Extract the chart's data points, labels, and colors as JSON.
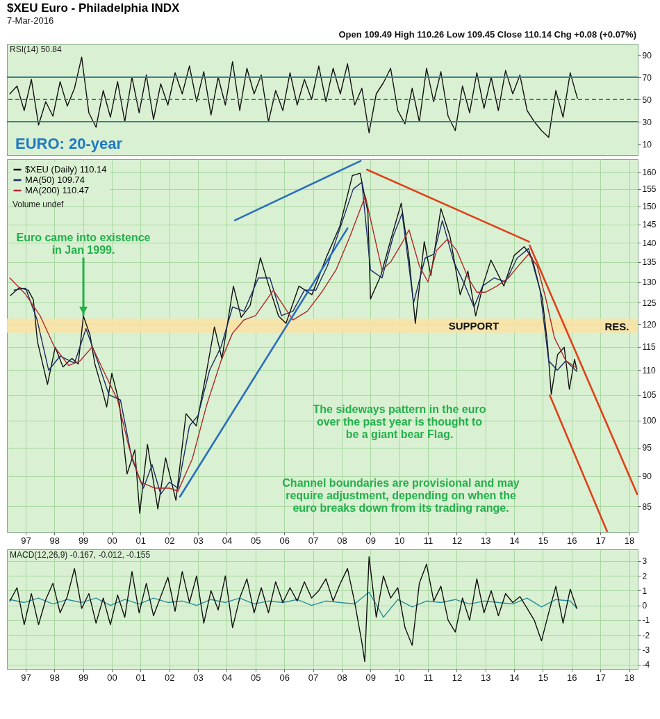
{
  "chart_data": [
    {
      "type": "line",
      "title": "$XEU Euro - Philadelphia INDX",
      "subtitle": "7-Mar-2016",
      "annotations": [
        "Open 109.49 High 110.26 Low 109.45 Close 110.14 Chg +0.08 (+0.07%)",
        "RSI(14) 50.84",
        "EURO: 20-year"
      ],
      "categories": [
        null,
        null,
        null,
        null,
        null,
        null,
        null,
        null,
        null,
        null,
        null,
        null,
        null,
        null,
        null,
        null,
        null,
        null,
        null,
        null,
        null,
        null,
        null,
        null,
        null,
        null,
        null,
        null,
        null,
        null,
        null,
        null,
        null,
        null,
        null,
        null,
        null,
        null,
        null,
        null,
        null,
        null,
        null,
        null,
        null,
        null,
        null,
        null,
        null,
        null,
        null,
        null,
        null,
        null,
        null,
        null,
        null,
        null,
        null,
        null,
        null,
        null,
        null,
        null,
        null,
        null,
        null,
        null,
        null,
        null,
        null,
        null,
        null,
        null,
        null,
        null,
        null,
        null,
        null,
        null,
        null,
        null,
        null,
        null,
        null,
        null,
        null,
        null
      ],
      "ylim": [
        0,
        100
      ],
      "yticks": [
        10,
        30,
        50,
        70,
        90
      ],
      "tick_labels": "y",
      "ref_lines": [
        {
          "axis": "y",
          "value": 70,
          "color": "#3d7f8c"
        },
        {
          "axis": "y",
          "value": 30,
          "color": "#3d7f8c"
        },
        {
          "axis": "y",
          "value": 50,
          "color": "#3d7f8c",
          "line_style": "dashed"
        }
      ],
      "series": [
        {
          "color": "#111111",
          "values": [
            55,
            62,
            40,
            68,
            27,
            48,
            35,
            66,
            44,
            60,
            88,
            38,
            25,
            58,
            34,
            66,
            30,
            70,
            38,
            72,
            32,
            64,
            45,
            74,
            55,
            80,
            48,
            75,
            36,
            70,
            45,
            84,
            40,
            78,
            55,
            72,
            30,
            58,
            40,
            74,
            45,
            68,
            50,
            80,
            48,
            78,
            55,
            82,
            45,
            60,
            20,
            55,
            65,
            78,
            40,
            28,
            60,
            30,
            78,
            48,
            75,
            35,
            22,
            62,
            38,
            74,
            42,
            70,
            40,
            76,
            55,
            72,
            40,
            30,
            22,
            16,
            58,
            34,
            74,
            51,
            null,
            null,
            null,
            null,
            null,
            null,
            null,
            null
          ]
        }
      ]
    },
    {
      "type": "line",
      "log": "y",
      "legend": "top left",
      "annotations": [
        {
          "text": "Euro came into existence\nin Jan 1999.",
          "x": 1999.01,
          "y": 121.9
        },
        "Volume undef",
        "The sideways pattern in the euro\nover the past year is thought to\nbe a giant bear Flag.",
        "Channel boundaries are provisional and may\nrequire adjustment, depending on when the\neuro breaks down from its trading range.",
        "RES."
      ],
      "xlim": [
        1996.35,
        2018.3
      ],
      "xticks": [
        {
          "value": 1997,
          "label": "97"
        },
        {
          "value": 1998,
          "label": "98"
        },
        {
          "value": 1999,
          "label": "99"
        },
        {
          "value": 2000,
          "label": "00"
        },
        {
          "value": 2001,
          "label": "01"
        },
        {
          "value": 2002,
          "label": "02"
        },
        {
          "value": 2003,
          "label": "03"
        },
        {
          "value": 2004,
          "label": "04"
        },
        {
          "value": 2005,
          "label": "05"
        },
        {
          "value": 2006,
          "label": "06"
        },
        {
          "value": 2007,
          "label": "07"
        },
        {
          "value": 2008,
          "label": "08"
        },
        {
          "value": 2009,
          "label": "09"
        },
        {
          "value": 2010,
          "label": "10"
        },
        {
          "value": 2011,
          "label": "11"
        },
        {
          "value": 2012,
          "label": "12"
        },
        {
          "value": 2013,
          "label": "13"
        },
        {
          "value": 2014,
          "label": "14"
        },
        {
          "value": 2015,
          "label": "15"
        },
        {
          "value": 2016,
          "label": "16"
        },
        {
          "value": 2017,
          "label": "17"
        },
        {
          "value": 2018,
          "label": "18"
        }
      ],
      "ylim": [
        81,
        164
      ],
      "yticks": [
        85,
        90,
        95,
        100,
        105,
        110,
        115,
        120,
        125,
        130,
        135,
        140,
        145,
        150,
        155,
        160
      ],
      "grid": true,
      "bands": [
        {
          "axis": "y",
          "from": 118.1,
          "to": 121.3,
          "label": "SUPPORT",
          "color": "#f8e2a6"
        }
      ],
      "series": [
        {
          "name": "$XEU (Daily) 110.14",
          "color": "#111111",
          "x": [
            1996.47,
            1996.78,
            1997.09,
            1997.27,
            1997.41,
            1997.76,
            1998.03,
            1998.3,
            1998.61,
            1998.83,
            1999.01,
            1999.24,
            1999.41,
            1999.64,
            1999.82,
            2000.0,
            2000.26,
            2000.53,
            2000.8,
            2000.97,
            2001.24,
            2001.6,
            2001.87,
            2002.23,
            2002.58,
            2002.94,
            2003.3,
            2003.57,
            2003.83,
            2004.23,
            2004.5,
            2004.81,
            2005.17,
            2005.44,
            2005.8,
            2006.06,
            2006.51,
            2006.96,
            2007.49,
            2007.93,
            2008.37,
            2008.64,
            2008.91,
            2009.0,
            2009.36,
            2009.71,
            2010.07,
            2010.34,
            2010.56,
            2010.87,
            2011.1,
            2011.45,
            2011.77,
            2012.12,
            2012.39,
            2012.66,
            2012.93,
            2013.19,
            2013.64,
            2014.0,
            2014.35,
            2014.62,
            2014.98,
            2015.16,
            2015.29,
            2015.51,
            2015.74,
            2015.92,
            2016.1,
            2016.18
          ],
          "values": [
            126.7,
            128.6,
            128.0,
            125.7,
            116.2,
            107.1,
            114.9,
            110.7,
            112.5,
            111.3,
            121.9,
            117.6,
            111.3,
            106.6,
            102.6,
            109.4,
            103.4,
            90.4,
            94.6,
            83.9,
            95.6,
            84.6,
            93.2,
            86.0,
            101.3,
            99.0,
            109.9,
            119.4,
            112.4,
            129.0,
            121.6,
            124.3,
            136.1,
            129.6,
            121.9,
            120.2,
            129.0,
            126.9,
            136.7,
            144.4,
            159.0,
            159.7,
            148.3,
            125.9,
            131.6,
            141.0,
            150.9,
            136.1,
            120.2,
            140.3,
            131.6,
            149.4,
            141.6,
            126.9,
            132.7,
            121.9,
            129.6,
            135.5,
            129.0,
            136.7,
            139.0,
            136.1,
            125.9,
            115.6,
            105.1,
            113.3,
            114.9,
            106.1,
            112.3,
            110.14
          ]
        },
        {
          "name": "MA(50) 109.74",
          "color": "#1c2b63",
          "x": [
            1996.6,
            1997.0,
            1997.4,
            1997.8,
            1998.2,
            1998.7,
            1999.1,
            1999.5,
            1999.9,
            2000.3,
            2000.7,
            2001.1,
            2001.4,
            2001.7,
            2002.0,
            2002.3,
            2002.7,
            2003.0,
            2003.4,
            2003.8,
            2004.2,
            2004.6,
            2005.1,
            2005.5,
            2005.9,
            2006.3,
            2006.7,
            2007.1,
            2007.5,
            2007.9,
            2008.4,
            2008.7,
            2009.0,
            2009.4,
            2009.8,
            2010.1,
            2010.5,
            2010.9,
            2011.2,
            2011.5,
            2011.9,
            2012.3,
            2012.6,
            2012.9,
            2013.3,
            2013.7,
            2014.1,
            2014.5,
            2014.9,
            2015.2,
            2015.5,
            2015.8,
            2016.18
          ],
          "values": [
            128,
            128.5,
            121,
            110,
            113,
            111.5,
            119,
            112,
            105,
            104,
            93,
            88,
            92,
            87,
            89,
            88,
            99,
            101,
            110,
            115,
            124,
            123,
            131,
            131,
            122,
            123,
            128,
            128,
            134,
            143,
            155,
            157,
            133,
            131,
            142,
            148,
            125,
            136,
            137,
            146,
            135,
            129,
            124,
            129,
            131,
            130,
            136,
            138.5,
            128,
            112,
            110,
            112,
            109.74
          ]
        },
        {
          "name": "MA(200) 110.47",
          "color": "#b0282a",
          "x": [
            1996.45,
            1997.0,
            1997.5,
            1998.0,
            1998.5,
            1998.9,
            1999.32,
            1999.7,
            2000.2,
            2000.6,
            2001.0,
            2001.5,
            2002.0,
            2002.3,
            2002.8,
            2003.3,
            2003.8,
            2004.2,
            2004.6,
            2005.0,
            2005.62,
            2006.0,
            2006.3,
            2006.8,
            2007.3,
            2007.8,
            2008.3,
            2008.82,
            2009.1,
            2009.4,
            2009.7,
            2010.1,
            2010.34,
            2010.7,
            2011.0,
            2011.3,
            2011.68,
            2012.0,
            2012.4,
            2012.7,
            2013.0,
            2013.4,
            2013.8,
            2014.2,
            2014.5,
            2014.8,
            2015.1,
            2015.4,
            2015.8,
            2016.18
          ],
          "values": [
            131,
            127,
            122,
            115,
            111,
            112,
            115,
            110,
            104,
            95,
            89,
            88,
            88,
            87.5,
            93,
            103,
            112,
            118,
            121,
            122,
            128,
            124,
            121,
            123,
            127.5,
            133,
            142,
            153,
            143,
            133,
            135,
            140,
            143.5,
            134,
            130,
            138,
            141,
            138,
            131,
            127.5,
            127.5,
            129,
            131,
            134.5,
            137,
            134,
            126,
            117,
            112,
            110.47
          ]
        },
        {
          "type": "line",
          "color": "#2a6ebb",
          "x": [
            2004.28,
            2008.66
          ],
          "values": [
            146.1,
            163.5
          ]
        },
        {
          "type": "line",
          "color": "#2a6ebb",
          "x": [
            2002.37,
            2008.2
          ],
          "values": [
            86.6,
            143.9
          ]
        },
        {
          "type": "line",
          "color": "#e0401a",
          "x": [
            2008.88,
            2014.52
          ],
          "values": [
            160.8,
            140.3
          ]
        },
        {
          "type": "line",
          "color": "#e0401a",
          "x": [
            2014.54,
            2018.28
          ],
          "values": [
            139.3,
            87.0
          ]
        },
        {
          "type": "line",
          "color": "#e0401a",
          "x": [
            2015.24,
            2017.24
          ],
          "values": [
            104.9,
            81.0
          ]
        }
      ]
    },
    {
      "type": "line",
      "annotations": [
        "MACD(12,26,9) -0.167, -0.012, -0.155"
      ],
      "xlim": [
        1996.35,
        2018.3
      ],
      "xticks": [
        {
          "value": 1997,
          "label": "97"
        },
        {
          "value": 1998,
          "label": "98"
        },
        {
          "value": 1999,
          "label": "99"
        },
        {
          "value": 2000,
          "label": "00"
        },
        {
          "value": 2001,
          "label": "01"
        },
        {
          "value": 2002,
          "label": "02"
        },
        {
          "value": 2003,
          "label": "03"
        },
        {
          "value": 2004,
          "label": "04"
        },
        {
          "value": 2005,
          "label": "05"
        },
        {
          "value": 2006,
          "label": "06"
        },
        {
          "value": 2007,
          "label": "07"
        },
        {
          "value": 2008,
          "label": "08"
        },
        {
          "value": 2009,
          "label": "09"
        },
        {
          "value": 2010,
          "label": "10"
        },
        {
          "value": 2011,
          "label": "11"
        },
        {
          "value": 2012,
          "label": "12"
        },
        {
          "value": 2013,
          "label": "13"
        },
        {
          "value": 2014,
          "label": "14"
        },
        {
          "value": 2015,
          "label": "15"
        },
        {
          "value": 2016,
          "label": "16"
        },
        {
          "value": 2017,
          "label": "17"
        },
        {
          "value": 2018,
          "label": "18"
        }
      ],
      "ylim": [
        -4.3,
        3.8
      ],
      "yticks": [
        -4,
        -3,
        -2,
        -1,
        0,
        1,
        2,
        3
      ],
      "grid": true,
      "series": [
        {
          "color": "#2a8f9a",
          "x": [
            1996.45,
            1996.95,
            1997.45,
            1997.95,
            1998.45,
            1998.95,
            1999.45,
            1999.95,
            2000.45,
            2000.95,
            2001.45,
            2001.95,
            2002.45,
            2002.95,
            2003.45,
            2003.95,
            2004.45,
            2004.95,
            2005.45,
            2005.95,
            2006.45,
            2006.95,
            2007.45,
            2007.95,
            2008.45,
            2008.95,
            2009.45,
            2009.95,
            2010.45,
            2010.95,
            2011.45,
            2011.95,
            2012.45,
            2012.95,
            2013.45,
            2013.95,
            2014.45,
            2014.95,
            2015.45,
            2015.95,
            2016.18
          ],
          "values": [
            0.4,
            0.2,
            0.5,
            0.1,
            0.4,
            0.2,
            0.5,
            0.0,
            0.4,
            0.1,
            0.5,
            0.2,
            0.3,
            0.0,
            0.4,
            0.2,
            0.5,
            0.1,
            0.3,
            0.2,
            0.4,
            0.0,
            0.3,
            0.2,
            0.1,
            0.9,
            -0.8,
            0.4,
            -0.1,
            0.3,
            0.2,
            0.4,
            0.1,
            0.3,
            0.2,
            0.1,
            0.5,
            -0.1,
            0.4,
            0.3,
            -0.2
          ]
        },
        {
          "color": "#111111",
          "x": [
            1996.45,
            1996.7,
            1996.95,
            1997.2,
            1997.45,
            1997.7,
            1997.95,
            1998.2,
            1998.45,
            1998.7,
            1998.95,
            1999.2,
            1999.45,
            1999.7,
            1999.95,
            2000.2,
            2000.45,
            2000.7,
            2000.95,
            2001.2,
            2001.45,
            2001.7,
            2001.95,
            2002.2,
            2002.45,
            2002.7,
            2002.95,
            2003.2,
            2003.45,
            2003.7,
            2003.95,
            2004.2,
            2004.45,
            2004.7,
            2004.95,
            2005.2,
            2005.45,
            2005.7,
            2005.95,
            2006.2,
            2006.45,
            2006.7,
            2006.95,
            2007.2,
            2007.45,
            2007.7,
            2007.95,
            2008.2,
            2008.45,
            2008.7,
            2008.8,
            2008.95,
            2009.2,
            2009.45,
            2009.7,
            2009.95,
            2010.2,
            2010.45,
            2010.7,
            2010.95,
            2011.2,
            2011.45,
            2011.7,
            2011.95,
            2012.2,
            2012.45,
            2012.7,
            2012.95,
            2013.2,
            2013.45,
            2013.7,
            2013.95,
            2014.2,
            2014.45,
            2014.7,
            2014.95,
            2015.2,
            2015.45,
            2015.7,
            2015.95,
            2016.18
          ],
          "values": [
            0.3,
            1.2,
            -1.3,
            0.8,
            -1.3,
            0.4,
            1.5,
            -0.5,
            0.6,
            2.5,
            -0.2,
            0.8,
            -1.2,
            0.5,
            -1.3,
            0.7,
            -0.8,
            2.3,
            -0.5,
            1.5,
            -0.7,
            0.6,
            1.9,
            -0.4,
            2.3,
            0.2,
            2.0,
            -1.2,
            1.0,
            -0.3,
            2.0,
            -1.5,
            0.5,
            1.8,
            -0.5,
            1.2,
            -0.5,
            1.6,
            0.2,
            1.2,
            0.3,
            1.6,
            0.5,
            1.0,
            1.8,
            0.3,
            1.5,
            2.5,
            0.2,
            -2.5,
            -3.8,
            3.3,
            -0.8,
            2.0,
            0.5,
            1.2,
            -1.5,
            -2.7,
            1.5,
            2.8,
            0.3,
            1.3,
            -1.0,
            -1.8,
            0.5,
            -1.0,
            1.8,
            -0.5,
            1.0,
            -0.7,
            0.8,
            0.2,
            0.6,
            -0.2,
            -1.0,
            -2.4,
            -0.5,
            1.3,
            -1.2,
            1.1,
            -0.2
          ]
        }
      ]
    }
  ]
}
